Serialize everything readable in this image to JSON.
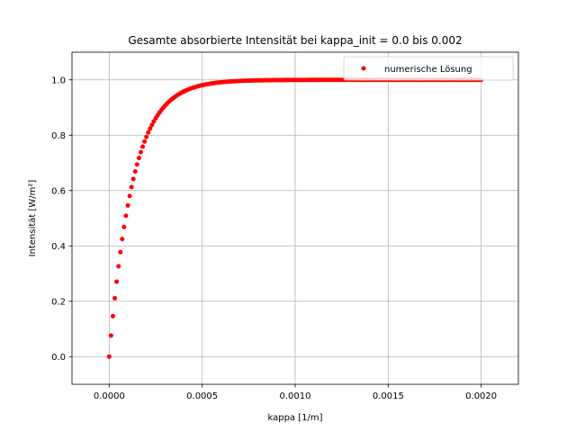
{
  "chart_data": {
    "type": "scatter",
    "title": "Gesamte absorbierte Intensität bei kappa_init = 0.0 bis 0.002",
    "xlabel": "kappa [1/m]",
    "ylabel": "Intensität [W/m²]",
    "xlim": [
      -0.0002,
      0.0022
    ],
    "ylim": [
      -0.1,
      1.1
    ],
    "xticks": [
      0.0,
      0.0005,
      0.001,
      0.0015,
      0.002
    ],
    "xtick_labels": [
      "0.0000",
      "0.0005",
      "0.0010",
      "0.0015",
      "0.0020"
    ],
    "yticks": [
      0.0,
      0.2,
      0.4,
      0.6,
      0.8,
      1.0
    ],
    "ytick_labels": [
      "0.0",
      "0.2",
      "0.4",
      "0.6",
      "0.8",
      "1.0"
    ],
    "grid": true,
    "legend_position": "top-right",
    "series": [
      {
        "name": "numerische Lösung",
        "color": "#ff0000",
        "marker": "dot",
        "x_start": 0.0,
        "x_end": 0.002,
        "x_step": 1e-05,
        "model": "1 - exp(-7900 * kappa)",
        "sample_points": [
          {
            "x": 0.0,
            "y": 0.0
          },
          {
            "x": 1e-05,
            "y": 0.08
          },
          {
            "x": 2e-05,
            "y": 0.15
          },
          {
            "x": 3e-05,
            "y": 0.21
          },
          {
            "x": 4e-05,
            "y": 0.27
          },
          {
            "x": 5e-05,
            "y": 0.33
          },
          {
            "x": 0.0001,
            "y": 0.55
          },
          {
            "x": 0.00015,
            "y": 0.7
          },
          {
            "x": 0.0002,
            "y": 0.79
          },
          {
            "x": 0.0003,
            "y": 0.91
          },
          {
            "x": 0.0004,
            "y": 0.96
          },
          {
            "x": 0.0005,
            "y": 0.985
          },
          {
            "x": 0.0006,
            "y": 0.992
          },
          {
            "x": 0.0008,
            "y": 0.998
          },
          {
            "x": 0.001,
            "y": 1.0
          },
          {
            "x": 0.0015,
            "y": 1.0
          },
          {
            "x": 0.002,
            "y": 1.0
          }
        ]
      }
    ]
  }
}
